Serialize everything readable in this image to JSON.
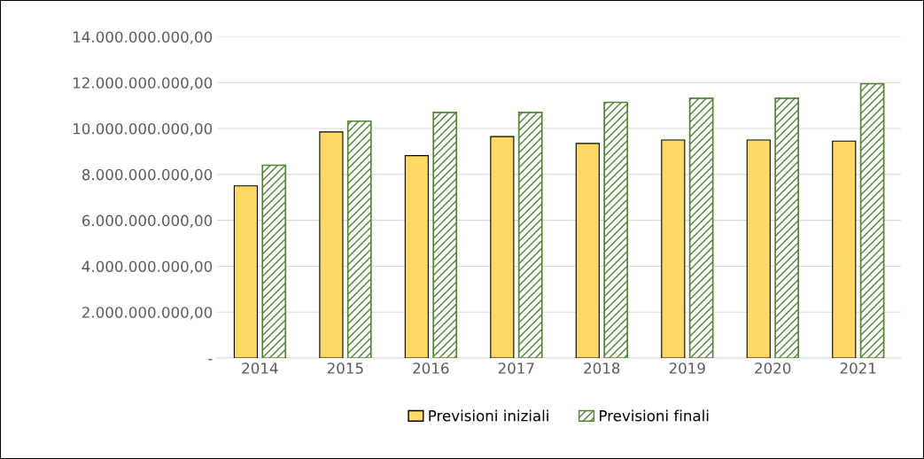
{
  "chart_data": {
    "type": "bar",
    "categories": [
      "2014",
      "2015",
      "2016",
      "2017",
      "2018",
      "2019",
      "2020",
      "2021"
    ],
    "series": [
      {
        "name": "Previsioni iniziali",
        "color": "#ffd966",
        "values": [
          7500000000.0,
          9850000000.0,
          8820000000.0,
          9650000000.0,
          9350000000.0,
          9500000000.0,
          9500000000.0,
          9450000000.0
        ]
      },
      {
        "name": "Previsioni finali",
        "color": "#548235",
        "values": [
          8400000000.0,
          10320000000.0,
          10700000000.0,
          10700000000.0,
          11140000000.0,
          11320000000.0,
          11320000000.0,
          11950000000.0
        ]
      }
    ],
    "ylim": [
      0,
      14000000000
    ],
    "yticks": [
      {
        "value": 0,
        "label": "-"
      },
      {
        "value": 2000000000,
        "label": "2.000.000.000,00"
      },
      {
        "value": 4000000000,
        "label": "4.000.000.000,00"
      },
      {
        "value": 6000000000,
        "label": "6.000.000.000,00"
      },
      {
        "value": 8000000000,
        "label": "8.000.000.000,00"
      },
      {
        "value": 10000000000,
        "label": "10.000.000.000,00"
      },
      {
        "value": 12000000000,
        "label": "12.000.000.000,00"
      },
      {
        "value": 14000000000,
        "label": "14.000.000.000,00"
      }
    ],
    "grid": "y",
    "legend": "bottom"
  }
}
